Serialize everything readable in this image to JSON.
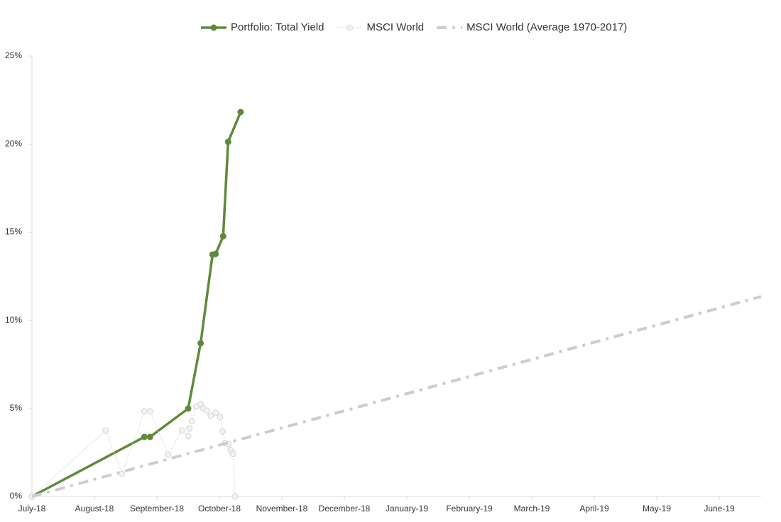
{
  "chart_data": {
    "type": "line",
    "xlim": [
      0,
      11.67
    ],
    "xticks": [
      {
        "value": 0,
        "label": "July-18"
      },
      {
        "value": 1,
        "label": "August-18"
      },
      {
        "value": 2,
        "label": "September-18"
      },
      {
        "value": 3,
        "label": "October-18"
      },
      {
        "value": 4,
        "label": "November-18"
      },
      {
        "value": 5,
        "label": "December-18"
      },
      {
        "value": 6,
        "label": "January-19"
      },
      {
        "value": 7,
        "label": "February-19"
      },
      {
        "value": 8,
        "label": "March-19"
      },
      {
        "value": 9,
        "label": "April-19"
      },
      {
        "value": 10,
        "label": "May-19"
      },
      {
        "value": 11,
        "label": "June-19"
      }
    ],
    "ylim": [
      0,
      25
    ],
    "yticks": [
      {
        "value": 0,
        "label": "0%"
      },
      {
        "value": 5,
        "label": "5%"
      },
      {
        "value": 10,
        "label": "10%"
      },
      {
        "value": 15,
        "label": "15%"
      },
      {
        "value": 20,
        "label": "20%"
      },
      {
        "value": 25,
        "label": "25%"
      }
    ],
    "legend": "top",
    "series": [
      {
        "name": "Portfolio: Total Yield",
        "color": "#5e8a3a",
        "line_style": "solid",
        "marker": true,
        "x": [
          0,
          1.8,
          1.89,
          2.5,
          2.7,
          2.89,
          2.94,
          3.06,
          3.14,
          3.34
        ],
        "values": [
          0,
          3.38,
          3.38,
          4.99,
          8.7,
          13.73,
          13.77,
          14.77,
          20.13,
          21.82
        ]
      },
      {
        "name": "MSCI World",
        "color": "#d6d6d6",
        "line_style": "dotted",
        "marker": true,
        "x": [
          0,
          1.18,
          1.44,
          1.8,
          1.89,
          2.18,
          2.4,
          2.5,
          2.52,
          2.56,
          2.63,
          2.7,
          2.74,
          2.8,
          2.86,
          2.94,
          3.01,
          3.05,
          3.09,
          3.14,
          3.18,
          3.22,
          3.25
        ],
        "values": [
          0,
          3.74,
          1.29,
          4.83,
          4.83,
          2.38,
          3.74,
          3.42,
          3.86,
          4.27,
          5.11,
          5.23,
          4.99,
          4.87,
          4.59,
          4.75,
          4.51,
          3.7,
          3.02,
          2.98,
          2.62,
          2.42,
          0
        ]
      },
      {
        "name": "MSCI World (Average 1970-2017)",
        "color": "#cccccc",
        "line_style": "dashdot",
        "marker": false,
        "x": [
          0,
          11.67
        ],
        "values": [
          0,
          11.35
        ]
      }
    ]
  }
}
